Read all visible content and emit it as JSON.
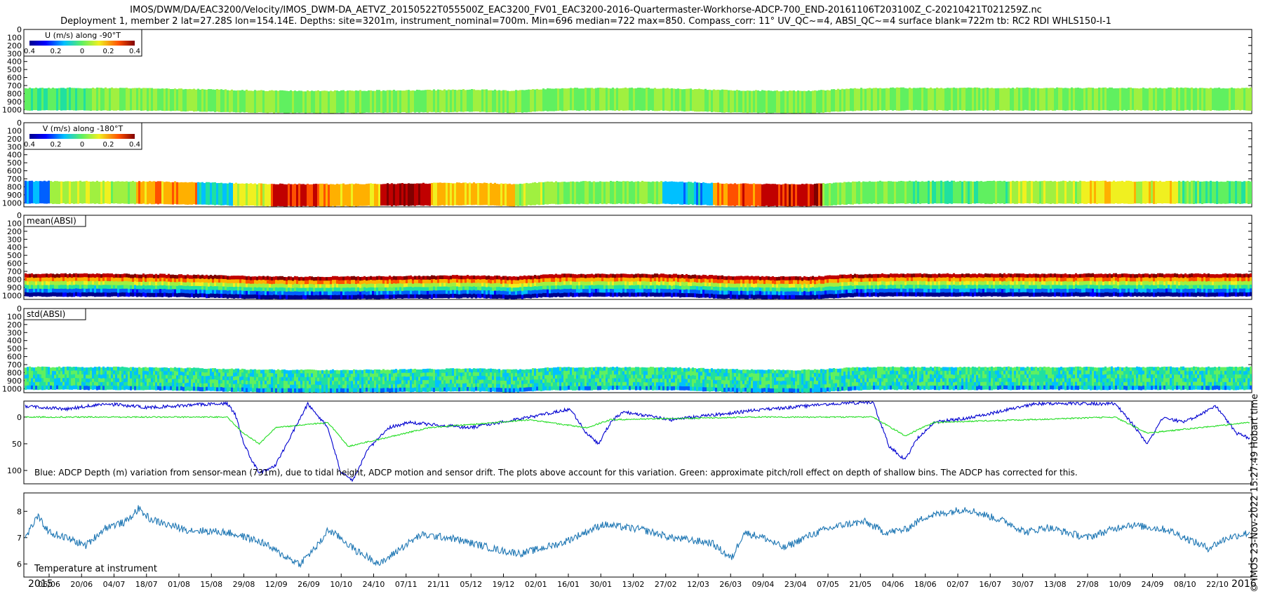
{
  "figure": {
    "title_line1": "IMOS/DWM/DA/EAC3200/Velocity/IMOS_DWM-DA_AETVZ_20150522T055500Z_EAC3200_FV01_EAC3200-2016-Quartermaster-Workhorse-ADCP-700_END-20161106T203100Z_C-20210421T021259Z.nc",
    "title_line2": "Deployment 1, member 2 lat=27.28S lon=154.14E. Depths: site=3201m, instrument_nominal=700m. Min=696 median=722 max=850. Compass_corr: 11° UV_QC~=4, ABSI_QC~=4 surface blank=722m tb: RC2 RDI WHLS150-I-1",
    "side_stamp": "© IMOS 23-Nov-2022 15:27:49 Hobart time",
    "year_start": "2015",
    "year_end": "2016"
  },
  "colors": {
    "axis": "#000000",
    "depth_line": "#0000d0",
    "pitch_roll_line": "#22dd22",
    "temperature_line": "#1f77b4",
    "colormap": [
      "#00008f",
      "#0000ff",
      "#0060ff",
      "#00c0ff",
      "#20e0a0",
      "#60f060",
      "#a0f040",
      "#f0f020",
      "#ffb000",
      "#ff5000",
      "#c00000",
      "#800000"
    ]
  },
  "chart_data": [
    {
      "type": "heatmap",
      "panel": "u",
      "colorbar_label": "U (m/s) along -90°T",
      "colorbar_ticks": [
        "0.4",
        "0.2",
        "0",
        "0.2",
        "0.4"
      ],
      "y_ticks": [
        "0",
        "100",
        "200",
        "300",
        "400",
        "500",
        "600",
        "700",
        "800",
        "900",
        "1000"
      ],
      "ylim": [
        0,
        1050
      ],
      "typical_depth_range": [
        730,
        1010
      ]
    },
    {
      "type": "heatmap",
      "panel": "v",
      "colorbar_label": "V (m/s) along -180°T",
      "colorbar_ticks": [
        "0.4",
        "0.2",
        "0",
        "0.2",
        "0.4"
      ],
      "y_ticks": [
        "0",
        "100",
        "200",
        "300",
        "400",
        "500",
        "600",
        "700",
        "800",
        "900",
        "1000"
      ],
      "ylim": [
        0,
        1050
      ],
      "typical_depth_range": [
        730,
        1010
      ]
    },
    {
      "type": "heatmap",
      "panel": "mean_absi",
      "label": "mean(ABSI)",
      "y_ticks": [
        "0",
        "100",
        "200",
        "300",
        "400",
        "500",
        "600",
        "700",
        "800",
        "900",
        "1000"
      ],
      "ylim": [
        0,
        1050
      ],
      "typical_depth_range": [
        730,
        1010
      ]
    },
    {
      "type": "heatmap",
      "panel": "std_absi",
      "label": "std(ABSI)",
      "y_ticks": [
        "0",
        "100",
        "200",
        "300",
        "400",
        "500",
        "600",
        "700",
        "800",
        "900",
        "1000"
      ],
      "ylim": [
        0,
        1050
      ],
      "typical_depth_range": [
        730,
        1010
      ]
    },
    {
      "type": "line",
      "panel": "depth",
      "annotation": "Blue: ADCP Depth (m) variation from sensor-mean (731m), due to tidal height, ADCP motion and sensor drift. The plots above account for this variation. Green: approximate pitch/roll effect on depth of shallow bins. The ADCP has corrected for this.",
      "y_ticks": [
        "0",
        "50",
        "100"
      ],
      "ylim": [
        -30,
        125
      ],
      "y_reversed": true,
      "series": [
        {
          "color": "blue",
          "x": [
            0,
            20,
            40,
            60,
            80,
            100,
            104,
            108,
            112,
            116,
            124,
            140,
            150,
            156,
            162,
            170,
            180,
            190,
            220,
            250,
            270,
            278,
            284,
            290,
            296,
            320,
            360,
            400,
            420,
            428,
            436,
            442,
            450,
            470,
            500,
            530,
            540,
            548,
            556,
            564,
            574,
            590,
            600,
            607
          ],
          "y": [
            -20,
            -15,
            -25,
            -18,
            -22,
            -26,
            -5,
            45,
            80,
            105,
            90,
            -25,
            20,
            100,
            120,
            60,
            20,
            10,
            20,
            0,
            -15,
            30,
            50,
            10,
            -10,
            5,
            -12,
            -25,
            -28,
            55,
            80,
            40,
            10,
            0,
            -25,
            -25,
            -25,
            10,
            50,
            0,
            10,
            -20,
            30,
            40
          ]
        },
        {
          "color": "green",
          "x": [
            0,
            60,
            100,
            108,
            116,
            124,
            150,
            160,
            200,
            250,
            278,
            290,
            360,
            420,
            436,
            450,
            540,
            556,
            607
          ],
          "y": [
            0,
            0,
            0,
            30,
            50,
            20,
            10,
            55,
            20,
            5,
            20,
            5,
            0,
            0,
            35,
            10,
            0,
            30,
            10
          ]
        }
      ]
    },
    {
      "type": "line",
      "panel": "temperature",
      "label": "Temperature at instrument",
      "y_ticks": [
        "6",
        "7",
        "8"
      ],
      "ylim": [
        5.5,
        8.7
      ],
      "series": [
        {
          "color": "temperature",
          "x": [
            0,
            6,
            12,
            20,
            30,
            40,
            50,
            56,
            62,
            70,
            80,
            100,
            110,
            118,
            126,
            136,
            146,
            150,
            156,
            164,
            176,
            186,
            196,
            210,
            226,
            236,
            246,
            266,
            286,
            306,
            320,
            340,
            350,
            356,
            366,
            376,
            386,
            396,
            406,
            416,
            426,
            436,
            446,
            466,
            486,
            496,
            506,
            526,
            546,
            566,
            586,
            596,
            607
          ],
          "y": [
            7.0,
            7.8,
            7.2,
            7.0,
            6.7,
            7.4,
            7.6,
            8.1,
            7.7,
            7.5,
            7.3,
            7.2,
            7.0,
            6.8,
            6.4,
            6.0,
            6.8,
            7.3,
            7.0,
            6.5,
            6.0,
            6.6,
            7.1,
            7.0,
            6.7,
            6.5,
            6.4,
            6.8,
            7.5,
            7.3,
            7.0,
            6.8,
            6.2,
            7.2,
            7.0,
            6.6,
            7.0,
            7.3,
            7.5,
            7.6,
            7.2,
            7.3,
            7.8,
            8.1,
            7.6,
            7.2,
            7.4,
            7.0,
            7.5,
            7.3,
            6.6,
            7.0,
            7.2
          ]
        }
      ]
    }
  ],
  "time_axis": {
    "labels": [
      "06/06",
      "20/06",
      "04/07",
      "18/07",
      "01/08",
      "15/08",
      "29/08",
      "12/09",
      "26/09",
      "10/10",
      "24/10",
      "07/11",
      "21/11",
      "05/12",
      "19/12",
      "02/01",
      "16/01",
      "30/01",
      "13/02",
      "27/02",
      "12/03",
      "26/03",
      "09/04",
      "23/04",
      "07/05",
      "21/05",
      "04/06",
      "18/06",
      "02/07",
      "16/07",
      "30/07",
      "13/08",
      "27/08",
      "10/09",
      "24/09",
      "08/10",
      "22/10"
    ]
  }
}
